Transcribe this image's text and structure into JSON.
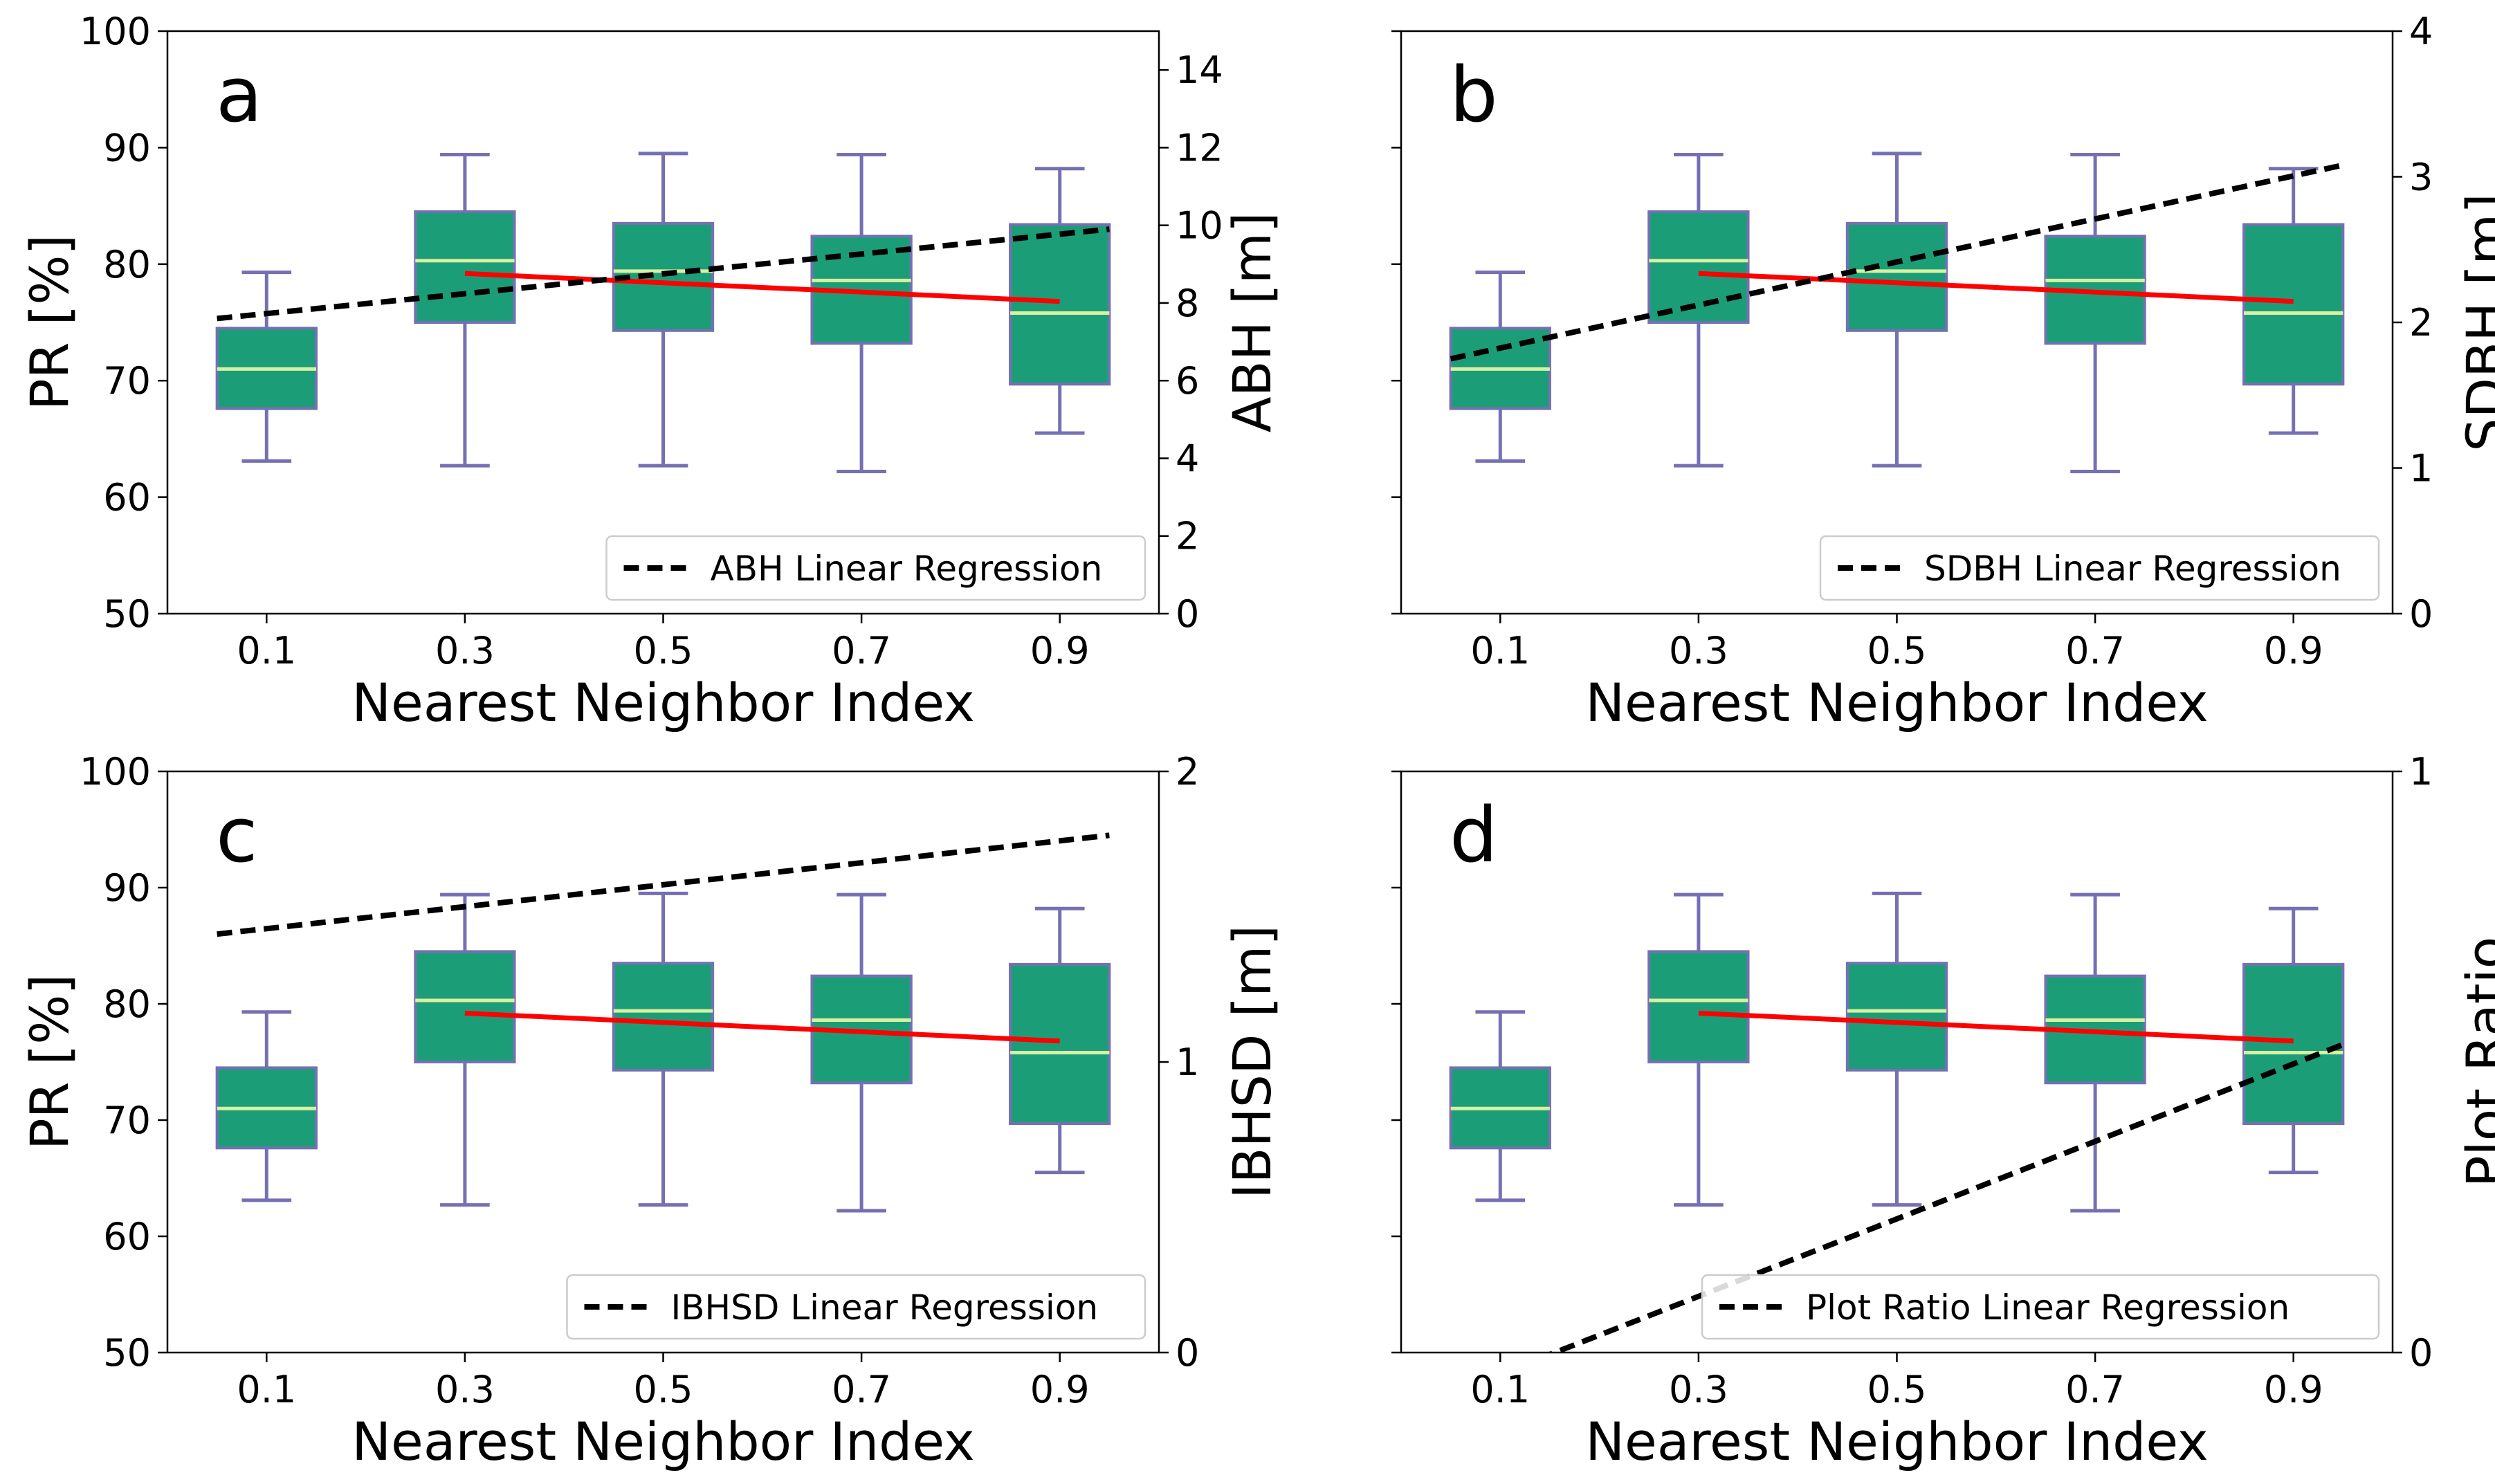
{
  "chart_data": [
    {
      "type": "box",
      "panel_letter": "a",
      "xlabel": "Nearest Neighbor Index",
      "ylabel": "PR [%]",
      "y2label": "ABH [m]",
      "ylim": [
        50,
        100
      ],
      "yticks": [
        50,
        60,
        70,
        80,
        90,
        100
      ],
      "y2lim": [
        0,
        15
      ],
      "y2ticks": [
        0,
        2,
        4,
        6,
        8,
        10,
        12,
        14
      ],
      "show_left_tick_labels": true,
      "categories": [
        "0.1",
        "0.3",
        "0.5",
        "0.7",
        "0.9"
      ],
      "x": [
        0.1,
        0.3,
        0.5,
        0.7,
        0.9
      ],
      "boxes": [
        {
          "whislo": 63.1,
          "q1": 67.6,
          "med": 71.0,
          "q3": 74.5,
          "whishi": 79.3
        },
        {
          "whislo": 62.7,
          "q1": 75.0,
          "med": 80.3,
          "q3": 84.5,
          "whishi": 89.4
        },
        {
          "whislo": 62.7,
          "q1": 74.3,
          "med": 79.4,
          "q3": 83.5,
          "whishi": 89.5
        },
        {
          "whislo": 62.2,
          "q1": 73.2,
          "med": 78.6,
          "q3": 82.4,
          "whishi": 89.4
        },
        {
          "whislo": 65.5,
          "q1": 69.7,
          "med": 75.8,
          "q3": 83.4,
          "whishi": 88.2
        }
      ],
      "pr_regression": {
        "x": [
          0.3,
          0.9
        ],
        "y": [
          79.2,
          76.8
        ]
      },
      "secondary_regression": {
        "name": "ABH Linear Regression",
        "x": [
          0.05,
          0.95
        ],
        "y": [
          7.6,
          9.9
        ]
      },
      "legend": "lower right",
      "grid": false
    },
    {
      "type": "box",
      "panel_letter": "b",
      "xlabel": "Nearest Neighbor Index",
      "ylabel": "",
      "y2label": "SDBH [m]",
      "ylim": [
        50,
        100
      ],
      "yticks": [
        50,
        60,
        70,
        80,
        90,
        100
      ],
      "y2lim": [
        0,
        4
      ],
      "y2ticks": [
        0,
        1,
        2,
        3,
        4
      ],
      "show_left_tick_labels": false,
      "categories": [
        "0.1",
        "0.3",
        "0.5",
        "0.7",
        "0.9"
      ],
      "x": [
        0.1,
        0.3,
        0.5,
        0.7,
        0.9
      ],
      "boxes": [
        {
          "whislo": 63.1,
          "q1": 67.6,
          "med": 71.0,
          "q3": 74.5,
          "whishi": 79.3
        },
        {
          "whislo": 62.7,
          "q1": 75.0,
          "med": 80.3,
          "q3": 84.5,
          "whishi": 89.4
        },
        {
          "whislo": 62.7,
          "q1": 74.3,
          "med": 79.4,
          "q3": 83.5,
          "whishi": 89.5
        },
        {
          "whislo": 62.2,
          "q1": 73.2,
          "med": 78.6,
          "q3": 82.4,
          "whishi": 89.4
        },
        {
          "whislo": 65.5,
          "q1": 69.7,
          "med": 75.8,
          "q3": 83.4,
          "whishi": 88.2
        }
      ],
      "pr_regression": {
        "x": [
          0.3,
          0.9
        ],
        "y": [
          79.2,
          76.8
        ]
      },
      "secondary_regression": {
        "name": "SDBH Linear Regression",
        "x": [
          0.05,
          0.95
        ],
        "y": [
          1.75,
          3.08
        ]
      },
      "legend": "lower right",
      "grid": false
    },
    {
      "type": "box",
      "panel_letter": "c",
      "xlabel": "Nearest Neighbor Index",
      "ylabel": "PR [%]",
      "y2label": "IBHSD [m]",
      "ylim": [
        50,
        100
      ],
      "yticks": [
        50,
        60,
        70,
        80,
        90,
        100
      ],
      "y2lim": [
        0,
        2
      ],
      "y2ticks": [
        0,
        1,
        2
      ],
      "show_left_tick_labels": true,
      "categories": [
        "0.1",
        "0.3",
        "0.5",
        "0.7",
        "0.9"
      ],
      "x": [
        0.1,
        0.3,
        0.5,
        0.7,
        0.9
      ],
      "boxes": [
        {
          "whislo": 63.1,
          "q1": 67.6,
          "med": 71.0,
          "q3": 74.5,
          "whishi": 79.3
        },
        {
          "whislo": 62.7,
          "q1": 75.0,
          "med": 80.3,
          "q3": 84.5,
          "whishi": 89.4
        },
        {
          "whislo": 62.7,
          "q1": 74.3,
          "med": 79.4,
          "q3": 83.5,
          "whishi": 89.5
        },
        {
          "whislo": 62.2,
          "q1": 73.2,
          "med": 78.6,
          "q3": 82.4,
          "whishi": 89.4
        },
        {
          "whislo": 65.5,
          "q1": 69.7,
          "med": 75.8,
          "q3": 83.4,
          "whishi": 88.2
        }
      ],
      "pr_regression": {
        "x": [
          0.3,
          0.9
        ],
        "y": [
          79.2,
          76.8
        ]
      },
      "secondary_regression": {
        "name": "IBHSD Linear Regression",
        "x": [
          0.05,
          0.95
        ],
        "y": [
          1.44,
          1.78
        ]
      },
      "legend": "lower right",
      "grid": false
    },
    {
      "type": "box",
      "panel_letter": "d",
      "xlabel": "Nearest Neighbor Index",
      "ylabel": "",
      "y2label": "Plot Ratio",
      "ylim": [
        50,
        100
      ],
      "yticks": [
        50,
        60,
        70,
        80,
        90,
        100
      ],
      "y2lim": [
        0,
        1
      ],
      "y2ticks": [
        0,
        1
      ],
      "show_left_tick_labels": false,
      "categories": [
        "0.1",
        "0.3",
        "0.5",
        "0.7",
        "0.9"
      ],
      "x": [
        0.1,
        0.3,
        0.5,
        0.7,
        0.9
      ],
      "boxes": [
        {
          "whislo": 63.1,
          "q1": 67.6,
          "med": 71.0,
          "q3": 74.5,
          "whishi": 79.3
        },
        {
          "whislo": 62.7,
          "q1": 75.0,
          "med": 80.3,
          "q3": 84.5,
          "whishi": 89.4
        },
        {
          "whislo": 62.7,
          "q1": 74.3,
          "med": 79.4,
          "q3": 83.5,
          "whishi": 89.5
        },
        {
          "whislo": 62.2,
          "q1": 73.2,
          "med": 78.6,
          "q3": 82.4,
          "whishi": 89.4
        },
        {
          "whislo": 65.5,
          "q1": 69.7,
          "med": 75.8,
          "q3": 83.4,
          "whishi": 88.2
        }
      ],
      "pr_regression": {
        "x": [
          0.3,
          0.9
        ],
        "y": [
          79.2,
          76.8
        ]
      },
      "secondary_regression": {
        "name": "Plot Ratio Linear Regression",
        "x": [
          0.05,
          0.95
        ],
        "y": [
          -0.07,
          0.53
        ]
      },
      "legend": "lower right",
      "grid": false
    }
  ],
  "colors": {
    "box_fill": "#1b9e77",
    "box_edge": "#7570b3",
    "median": "#d9f0a3",
    "pr_regression": "#ff0000",
    "secondary_regression": "#000000"
  }
}
